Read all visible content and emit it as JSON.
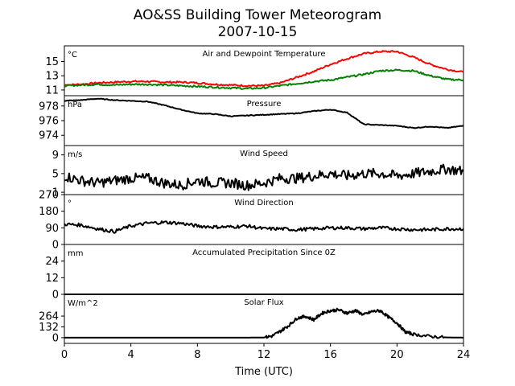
{
  "figure": {
    "title_line1": "AO&SS Building Tower Meteorogram",
    "title_line2": "2007-10-15",
    "xlabel": "Time (UTC)",
    "xticks": [
      "0",
      "4",
      "8",
      "12",
      "16",
      "20",
      "24"
    ]
  },
  "chart_data": [
    {
      "type": "line",
      "title": "Air and Dewpoint Temperature",
      "unit_label": "°C",
      "ylim": [
        10.2,
        17.2
      ],
      "yticks": [
        11,
        13,
        15
      ],
      "xlim": [
        0,
        24
      ],
      "series": [
        {
          "color": "#ff0000",
          "x": [
            0,
            1,
            2,
            3,
            4,
            5,
            6,
            7,
            8,
            9,
            10,
            11,
            12,
            13,
            14,
            15,
            16,
            17,
            18,
            19,
            20,
            21,
            22,
            23,
            24
          ],
          "values": [
            11.7,
            11.8,
            12.0,
            12.1,
            12.2,
            12.2,
            12.1,
            12.1,
            12.0,
            11.8,
            11.7,
            11.6,
            11.6,
            12.0,
            12.8,
            13.6,
            14.6,
            15.4,
            16.1,
            16.4,
            16.4,
            15.6,
            14.6,
            13.9,
            13.5
          ]
        },
        {
          "color": "#008000",
          "x": [
            0,
            1,
            2,
            3,
            4,
            5,
            6,
            7,
            8,
            9,
            10,
            11,
            12,
            13,
            14,
            15,
            16,
            17,
            18,
            19,
            20,
            21,
            22,
            23,
            24
          ],
          "values": [
            11.6,
            11.7,
            11.8,
            11.7,
            11.8,
            11.8,
            11.7,
            11.6,
            11.5,
            11.4,
            11.3,
            11.2,
            11.3,
            11.6,
            11.9,
            12.2,
            12.4,
            12.8,
            13.2,
            13.7,
            13.8,
            13.7,
            13.0,
            12.5,
            12.4
          ]
        }
      ]
    },
    {
      "type": "line",
      "title": "Pressure",
      "unit_label": "hPa",
      "ylim": [
        972.6,
        979.4
      ],
      "yticks": [
        974,
        976,
        978
      ],
      "xlim": [
        0,
        24
      ],
      "series": [
        {
          "color": "#000000",
          "x": [
            0,
            1,
            2,
            3,
            4,
            5,
            6,
            7,
            8,
            9,
            10,
            11,
            12,
            13,
            14,
            15,
            16,
            17,
            18,
            19,
            20,
            21,
            22,
            23,
            24
          ],
          "values": [
            978.7,
            978.8,
            979.0,
            978.8,
            978.7,
            978.6,
            978.1,
            977.5,
            977.0,
            976.9,
            976.6,
            976.7,
            976.8,
            976.9,
            977.0,
            977.3,
            977.5,
            977.1,
            975.5,
            975.4,
            975.3,
            975.0,
            975.2,
            975.0,
            975.3
          ]
        }
      ]
    },
    {
      "type": "line",
      "title": "Wind Speed",
      "unit_label": "m/s",
      "ylim": [
        0.5,
        11
      ],
      "yticks": [
        1,
        5,
        9
      ],
      "xlim": [
        0,
        24
      ],
      "series": [
        {
          "color": "#000000",
          "x": [
            0,
            1,
            2,
            3,
            4,
            5,
            6,
            7,
            8,
            9,
            10,
            11,
            12,
            13,
            14,
            15,
            16,
            17,
            18,
            19,
            20,
            21,
            22,
            23,
            24
          ],
          "values": [
            4.5,
            3.5,
            3.0,
            3.5,
            4.0,
            4.0,
            3.0,
            2.5,
            3.5,
            3.0,
            3.0,
            2.5,
            3.0,
            4.0,
            4.0,
            4.5,
            5.0,
            4.5,
            5.0,
            5.0,
            4.5,
            5.0,
            5.5,
            6.0,
            5.5
          ]
        }
      ]
    },
    {
      "type": "line",
      "title": "Wind Direction",
      "unit_label": "°",
      "ylim": [
        0,
        270
      ],
      "yticks": [
        0,
        90,
        180,
        270
      ],
      "xlim": [
        0,
        24
      ],
      "series": [
        {
          "color": "#000000",
          "x": [
            0,
            1,
            2,
            3,
            4,
            5,
            6,
            7,
            8,
            9,
            10,
            11,
            12,
            13,
            14,
            15,
            16,
            17,
            18,
            19,
            20,
            21,
            22,
            23,
            24
          ],
          "values": [
            110,
            105,
            85,
            70,
            100,
            115,
            120,
            115,
            100,
            95,
            95,
            100,
            85,
            85,
            80,
            85,
            90,
            90,
            85,
            90,
            85,
            80,
            80,
            85,
            85
          ]
        }
      ]
    },
    {
      "type": "line",
      "title": "Accumulated Precipitation Since 0Z",
      "unit_label": "mm",
      "ylim": [
        0,
        36
      ],
      "yticks": [
        0,
        12,
        24
      ],
      "xlim": [
        0,
        24
      ],
      "series": [
        {
          "color": "#000000",
          "x": [
            0,
            24
          ],
          "values": [
            0,
            0
          ]
        }
      ]
    },
    {
      "type": "line",
      "title": "Solar Flux",
      "unit_label": "W/m^2",
      "ylim": [
        -70,
        530
      ],
      "yticks": [
        0,
        132,
        264
      ],
      "xlim": [
        0,
        24
      ],
      "series": [
        {
          "color": "#000000",
          "x": [
            0,
            1,
            2,
            3,
            4,
            5,
            6,
            7,
            8,
            9,
            10,
            11,
            12,
            12.5,
            13,
            13.5,
            14,
            14.5,
            15,
            15.5,
            16,
            16.5,
            17,
            17.5,
            18,
            18.5,
            19,
            19.5,
            20,
            20.5,
            21,
            22,
            23,
            24
          ],
          "values": [
            0,
            0,
            0,
            0,
            0,
            0,
            0,
            0,
            0,
            0,
            0,
            0,
            2,
            20,
            80,
            150,
            240,
            260,
            220,
            300,
            330,
            340,
            300,
            330,
            280,
            320,
            330,
            250,
            180,
            70,
            40,
            15,
            3,
            0
          ]
        }
      ]
    }
  ]
}
